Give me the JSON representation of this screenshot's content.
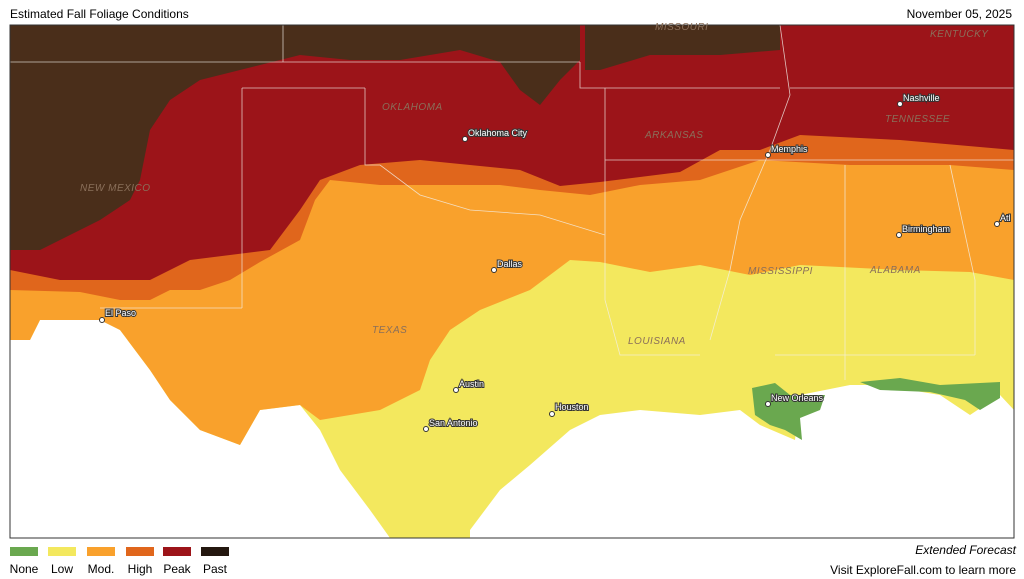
{
  "header": {
    "title": "Estimated Fall Foliage Conditions",
    "date": "November 05, 2025"
  },
  "map": {
    "states": [
      "MISSOURI",
      "KENTUCKY",
      "OKLAHOMA",
      "ARKANSAS",
      "TENNESSEE",
      "NEW MEXICO",
      "TEXAS",
      "LOUISIANA",
      "MISSISSIPPI",
      "ALABAMA"
    ],
    "cities": [
      "Nashville",
      "Oklahoma City",
      "Memphis",
      "Birmingham",
      "Atl",
      "Dallas",
      "El Paso",
      "Austin",
      "Houston",
      "San Antonio",
      "New Orleans"
    ]
  },
  "legend": {
    "items": [
      {
        "label": "None",
        "color": "#6aa84f"
      },
      {
        "label": "Low",
        "color": "#f3e85e"
      },
      {
        "label": "Mod.",
        "color": "#f9a12c"
      },
      {
        "label": "High",
        "color": "#e0661c"
      },
      {
        "label": "Peak",
        "color": "#9c1419"
      },
      {
        "label": "Past",
        "color": "#24170f"
      }
    ]
  },
  "footer": {
    "forecast": "Extended Forecast",
    "link": "Visit ExploreFall.com to learn more"
  }
}
